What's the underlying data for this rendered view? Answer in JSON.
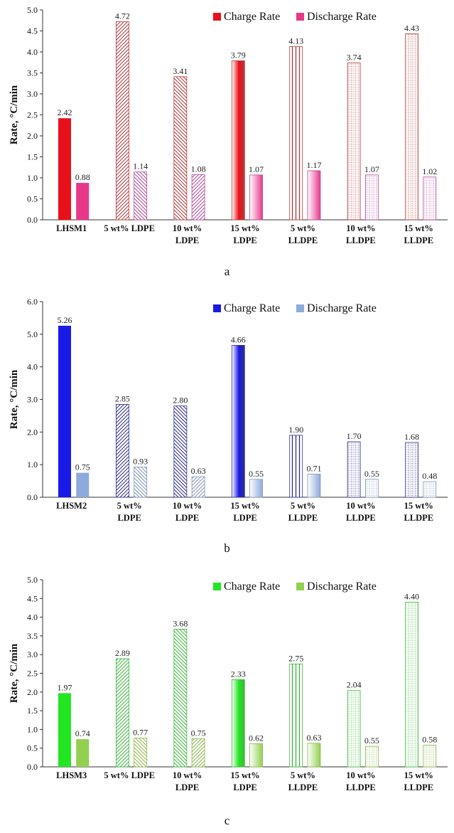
{
  "chart_data": [
    {
      "panel": "a",
      "type": "bar",
      "ylabel": "Rate, °C/min",
      "ylim": [
        0,
        5.0
      ],
      "yticks": [
        "0.0",
        "0.5",
        "1.0",
        "1.5",
        "2.0",
        "2.5",
        "3.0",
        "3.5",
        "4.0",
        "4.5",
        "5.0"
      ],
      "categories": [
        [
          "LHSM1"
        ],
        [
          "5 wt% LDPE"
        ],
        [
          "10 wt%",
          "LDPE"
        ],
        [
          "15 wt%",
          "LDPE"
        ],
        [
          "5 wt%",
          "LLDPE"
        ],
        [
          "10 wt%",
          "LLDPE"
        ],
        [
          "15 wt%",
          "LLDPE"
        ]
      ],
      "legend_position": "top-right",
      "series": [
        {
          "name": "Charge Rate",
          "values": [
            2.42,
            4.72,
            3.41,
            3.79,
            4.13,
            3.74,
            4.43
          ],
          "labels": [
            "2.42",
            "4.72",
            "3.41",
            "3.79",
            "4.13",
            "3.74",
            "4.43"
          ]
        },
        {
          "name": "Discharge Rate",
          "values": [
            0.88,
            1.14,
            1.08,
            1.07,
            1.17,
            1.07,
            1.02
          ],
          "labels": [
            "0.88",
            "1.14",
            "1.08",
            "1.07",
            "1.17",
            "1.07",
            "1.02"
          ]
        }
      ],
      "colors": {
        "charge": "#e8101a",
        "discharge": "#e8388a",
        "pattern": "#b53a3a",
        "pattern_discharge": "#b04a9a"
      },
      "caption": "a"
    },
    {
      "panel": "b",
      "type": "bar",
      "ylabel": "Rate, °C/min",
      "ylim": [
        0,
        6.0
      ],
      "yticks": [
        "0.0",
        "1.0",
        "2.0",
        "3.0",
        "4.0",
        "5.0",
        "6.0"
      ],
      "categories": [
        [
          "LHSM2"
        ],
        [
          "5 wt%",
          "LDPE"
        ],
        [
          "10 wt%",
          "LDPE"
        ],
        [
          "15 wt%",
          "LDPE"
        ],
        [
          "5 wt%",
          "LLDPE"
        ],
        [
          "10 wt%",
          "LLDPE"
        ],
        [
          "15 wt%",
          "LLDPE"
        ]
      ],
      "legend_position": "top-right",
      "series": [
        {
          "name": "Charge Rate",
          "values": [
            5.26,
            2.85,
            2.8,
            4.66,
            1.9,
            1.7,
            1.68
          ],
          "labels": [
            "5.26",
            "2.85",
            "2.80",
            "4.66",
            "1.90",
            "1.70",
            "1.68"
          ]
        },
        {
          "name": "Discharge Rate",
          "values": [
            0.75,
            0.93,
            0.63,
            0.55,
            0.71,
            0.55,
            0.48
          ],
          "labels": [
            "0.75",
            "0.93",
            "0.63",
            "0.55",
            "0.71",
            "0.55",
            "0.48"
          ]
        }
      ],
      "colors": {
        "charge": "#1a1ae6",
        "discharge": "#8ea9db",
        "pattern": "#2e2e8c",
        "pattern_discharge": "#7f96b8"
      },
      "caption": "b"
    },
    {
      "panel": "c",
      "type": "bar",
      "ylabel": "Rate, °C/min",
      "ylim": [
        0,
        5.0
      ],
      "yticks": [
        "0.0",
        "0.5",
        "1.0",
        "1.5",
        "2.0",
        "2.5",
        "3.0",
        "3.5",
        "4.0",
        "4.5",
        "5.0"
      ],
      "categories": [
        [
          "LHSM3"
        ],
        [
          "5 wt% LDPE"
        ],
        [
          "10 wt%",
          "LDPE"
        ],
        [
          "15 wt%",
          "LDPE"
        ],
        [
          "5 wt%",
          "LLDPE"
        ],
        [
          "10 wt%",
          "LLDPE"
        ],
        [
          "15 wt%",
          "LLDPE"
        ]
      ],
      "legend_position": "top-right",
      "series": [
        {
          "name": "Charge Rate",
          "values": [
            1.97,
            2.89,
            3.68,
            2.33,
            2.75,
            2.04,
            4.4
          ],
          "labels": [
            "1.97",
            "2.89",
            "3.68",
            "2.33",
            "2.75",
            "2.04",
            "4.40"
          ]
        },
        {
          "name": "Discharge Rate",
          "values": [
            0.74,
            0.77,
            0.75,
            0.62,
            0.63,
            0.55,
            0.58
          ],
          "labels": [
            "0.74",
            "0.77",
            "0.75",
            "0.62",
            "0.63",
            "0.55",
            "0.58"
          ]
        }
      ],
      "colors": {
        "charge": "#22e622",
        "discharge": "#92d050",
        "pattern": "#3cb83c",
        "pattern_discharge": "#8cb84a"
      },
      "caption": "c"
    }
  ]
}
